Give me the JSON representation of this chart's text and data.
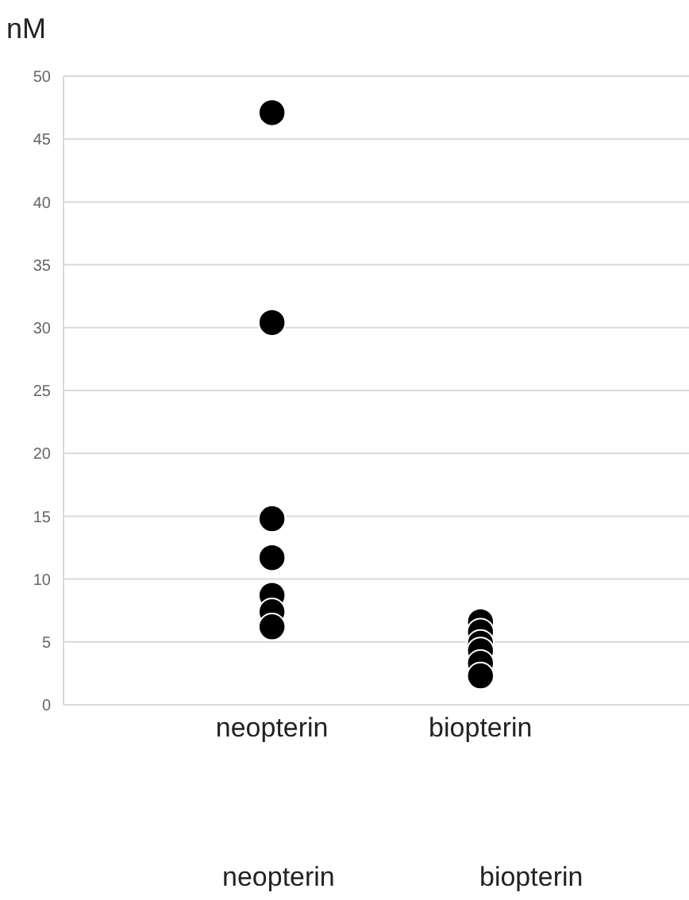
{
  "chart_data": {
    "type": "scatter",
    "ylabel": "nM",
    "categories": [
      "neopterin",
      "biopterin"
    ],
    "series": [
      {
        "color": "#000000",
        "x": [
          "neopterin",
          "neopterin",
          "neopterin",
          "neopterin",
          "neopterin",
          "neopterin",
          "neopterin"
        ],
        "values": [
          47.1,
          30.4,
          14.8,
          11.7,
          8.7,
          7.4,
          6.2
        ]
      },
      {
        "color": "#000000",
        "x": [
          "biopterin",
          "biopterin",
          "biopterin",
          "biopterin",
          "biopterin",
          "biopterin"
        ],
        "values": [
          6.6,
          5.8,
          4.9,
          4.3,
          3.3,
          2.3
        ]
      }
    ],
    "ylim": [
      0,
      50
    ],
    "yticks": [
      0,
      5,
      10,
      15,
      20,
      25,
      30,
      35,
      40,
      45,
      50
    ],
    "grid": "y",
    "marker": "circle",
    "annotations": [
      "neopterin",
      "biopterin"
    ]
  }
}
